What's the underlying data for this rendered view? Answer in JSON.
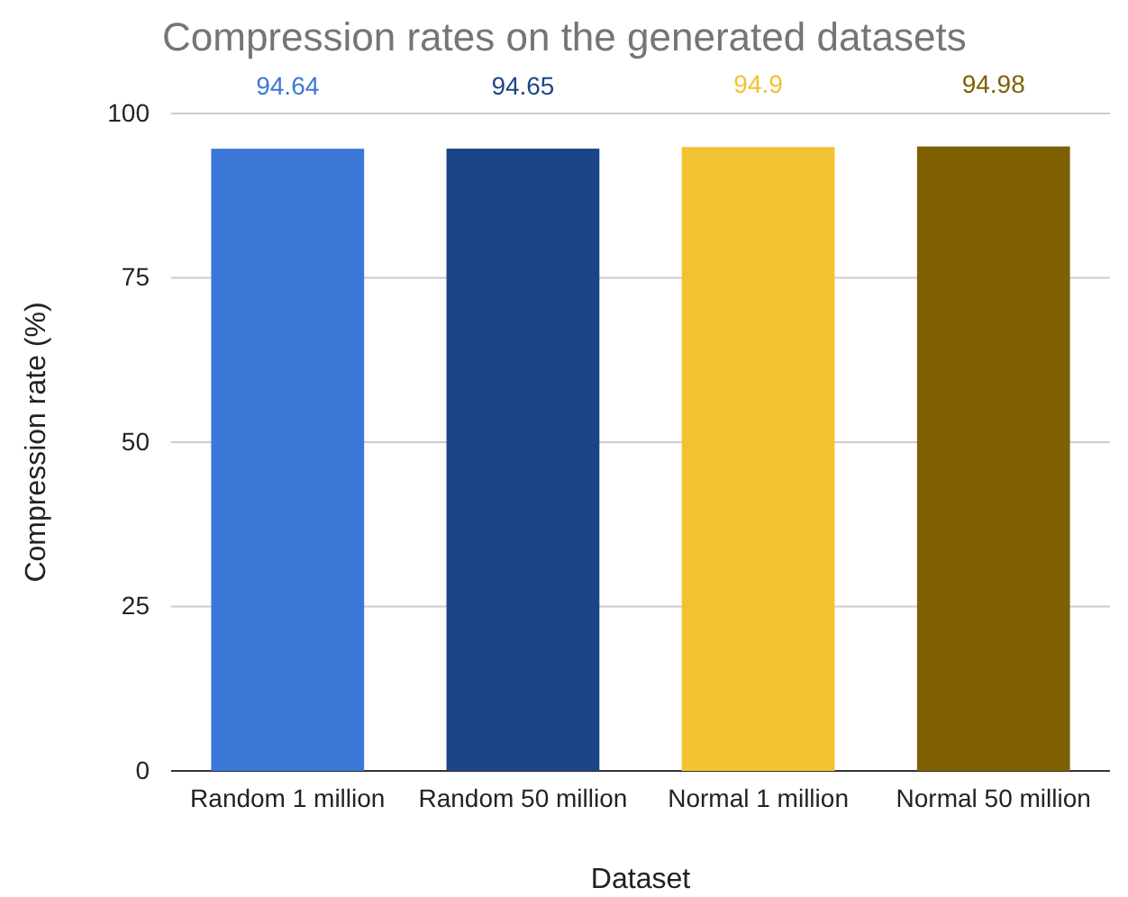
{
  "chart_data": {
    "type": "bar",
    "title": "Compression rates on the generated datasets",
    "xlabel": "Dataset",
    "ylabel": "Compression rate (%)",
    "categories": [
      "Random 1 million",
      "Random 50 million",
      "Normal 1 million",
      "Normal 50 million"
    ],
    "values": [
      94.64,
      94.65,
      94.9,
      94.98
    ],
    "colors": [
      "#3c78d8",
      "#1c4587",
      "#f1c232",
      "#7f6000"
    ],
    "ylim": [
      0,
      100
    ],
    "yticks": [
      0,
      25,
      50,
      75,
      100
    ],
    "grid": "y",
    "data_labels": true
  }
}
